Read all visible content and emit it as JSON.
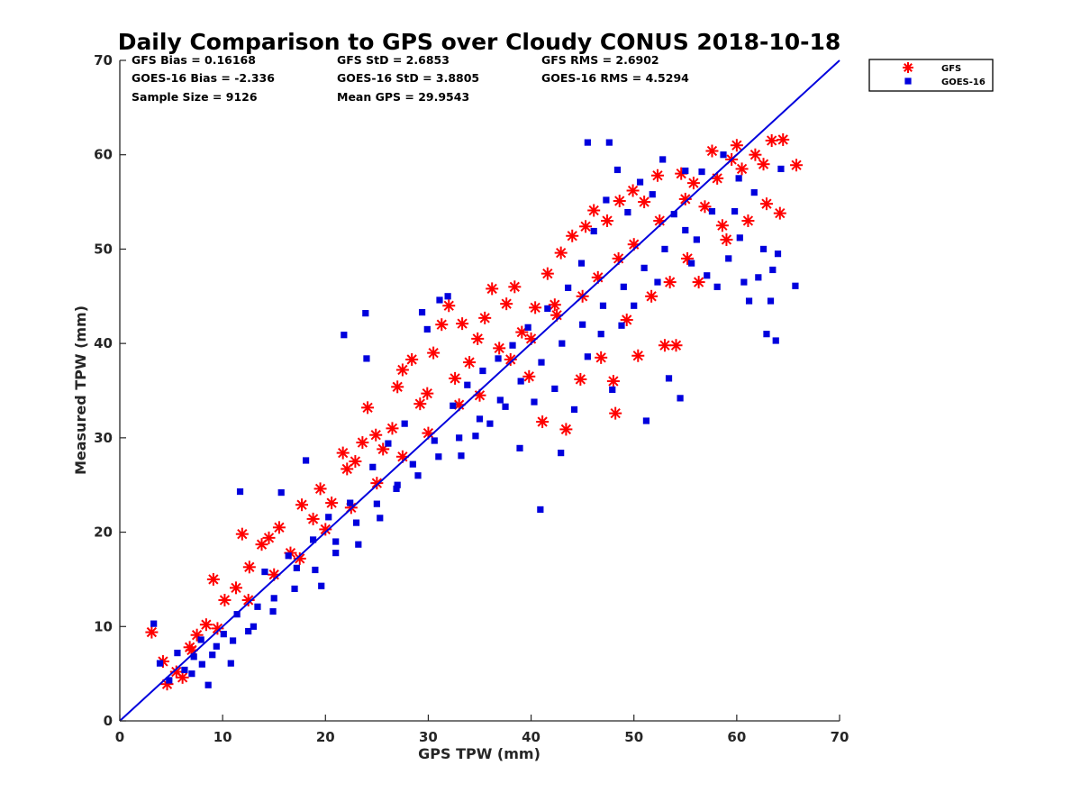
{
  "chart_data": {
    "type": "scatter",
    "title": "Daily Comparison to GPS over Cloudy CONUS 2018-10-18",
    "xlabel": "GPS TPW (mm)",
    "ylabel": "Measured TPW (mm)",
    "xlim": [
      0,
      70
    ],
    "ylim": [
      0,
      70
    ],
    "xticks": [
      0,
      10,
      20,
      30,
      40,
      50,
      60,
      70
    ],
    "yticks": [
      0,
      10,
      20,
      30,
      40,
      50,
      60,
      70
    ],
    "grid": false,
    "legend_position": "outside top-right",
    "reference_line": {
      "x": [
        0,
        70
      ],
      "y": [
        0,
        70
      ],
      "color": "#0000dd"
    },
    "stats": [
      [
        "GFS Bias = 0.16168",
        "GFS StD = 2.6853",
        "GFS RMS = 2.6902"
      ],
      [
        "GOES-16 Bias = -2.336",
        "GOES-16 StD = 3.8805",
        "GOES-16 RMS = 4.5294"
      ],
      [
        "Sample Size = 9126",
        "Mean GPS = 29.9543",
        ""
      ]
    ],
    "series": [
      {
        "name": "GFS",
        "color": "#ff0000",
        "marker": "asterisk",
        "points": [
          [
            3.1,
            9.4
          ],
          [
            4.2,
            6.3
          ],
          [
            4.6,
            3.9
          ],
          [
            5.5,
            5.2
          ],
          [
            6.1,
            4.6
          ],
          [
            6.8,
            7.8
          ],
          [
            7.5,
            9.1
          ],
          [
            8.4,
            10.2
          ],
          [
            9.1,
            15.0
          ],
          [
            10.2,
            12.8
          ],
          [
            11.3,
            14.1
          ],
          [
            11.9,
            19.8
          ],
          [
            12.6,
            16.3
          ],
          [
            13.8,
            18.7
          ],
          [
            14.5,
            19.4
          ],
          [
            15.5,
            20.5
          ],
          [
            16.6,
            17.8
          ],
          [
            17.7,
            22.9
          ],
          [
            18.8,
            21.4
          ],
          [
            19.5,
            24.6
          ],
          [
            20.6,
            23.1
          ],
          [
            21.7,
            28.4
          ],
          [
            22.1,
            26.7
          ],
          [
            22.9,
            27.5
          ],
          [
            23.6,
            29.5
          ],
          [
            24.1,
            33.2
          ],
          [
            24.9,
            30.3
          ],
          [
            25.6,
            28.8
          ],
          [
            26.5,
            31.0
          ],
          [
            27.0,
            35.4
          ],
          [
            27.5,
            37.2
          ],
          [
            28.4,
            38.3
          ],
          [
            29.2,
            33.6
          ],
          [
            29.9,
            34.7
          ],
          [
            30.5,
            39.0
          ],
          [
            31.3,
            42.0
          ],
          [
            32.0,
            44.0
          ],
          [
            32.6,
            36.3
          ],
          [
            33.3,
            42.1
          ],
          [
            34.0,
            38.0
          ],
          [
            34.8,
            40.5
          ],
          [
            35.5,
            42.7
          ],
          [
            36.2,
            45.8
          ],
          [
            36.9,
            39.5
          ],
          [
            37.6,
            44.2
          ],
          [
            38.4,
            46.0
          ],
          [
            39.1,
            41.2
          ],
          [
            39.8,
            36.5
          ],
          [
            40.4,
            43.8
          ],
          [
            41.1,
            31.7
          ],
          [
            41.6,
            47.4
          ],
          [
            42.3,
            44.1
          ],
          [
            42.9,
            49.6
          ],
          [
            43.4,
            30.9
          ],
          [
            44.0,
            51.4
          ],
          [
            44.8,
            36.2
          ],
          [
            45.3,
            52.4
          ],
          [
            46.1,
            54.1
          ],
          [
            46.8,
            38.5
          ],
          [
            47.4,
            53.0
          ],
          [
            48.0,
            36.0
          ],
          [
            48.2,
            32.6
          ],
          [
            48.6,
            55.1
          ],
          [
            49.3,
            42.5
          ],
          [
            49.9,
            56.2
          ],
          [
            50.4,
            38.7
          ],
          [
            51.0,
            55.0
          ],
          [
            51.7,
            45.0
          ],
          [
            52.3,
            57.8
          ],
          [
            53.0,
            39.8
          ],
          [
            53.5,
            46.5
          ],
          [
            54.1,
            39.8
          ],
          [
            54.6,
            58.0
          ],
          [
            55.2,
            49.0
          ],
          [
            55.8,
            57.0
          ],
          [
            56.3,
            46.5
          ],
          [
            56.9,
            54.5
          ],
          [
            57.6,
            60.4
          ],
          [
            58.1,
            57.5
          ],
          [
            58.6,
            52.5
          ],
          [
            59.0,
            51.0
          ],
          [
            59.5,
            59.5
          ],
          [
            60.0,
            61.0
          ],
          [
            60.5,
            58.5
          ],
          [
            61.1,
            53.0
          ],
          [
            61.8,
            60.0
          ],
          [
            62.6,
            59.0
          ],
          [
            62.9,
            54.8
          ],
          [
            63.4,
            61.5
          ],
          [
            64.2,
            53.8
          ],
          [
            64.5,
            61.6
          ],
          [
            65.8,
            58.9
          ],
          [
            45.0,
            45.0
          ],
          [
            40.0,
            40.5
          ],
          [
            35.0,
            34.5
          ],
          [
            30.0,
            30.5
          ],
          [
            25.0,
            25.2
          ],
          [
            20.0,
            20.3
          ],
          [
            15.0,
            15.5
          ],
          [
            50.0,
            50.5
          ],
          [
            55.0,
            55.3
          ],
          [
            38.0,
            38.3
          ],
          [
            33.0,
            33.5
          ],
          [
            27.5,
            28.0
          ],
          [
            22.5,
            22.6
          ],
          [
            17.5,
            17.2
          ],
          [
            12.5,
            12.8
          ],
          [
            7.0,
            7.5
          ],
          [
            9.5,
            9.8
          ],
          [
            46.5,
            47.0
          ],
          [
            42.5,
            43.0
          ],
          [
            52.5,
            53.0
          ],
          [
            48.5,
            49.0
          ]
        ]
      },
      {
        "name": "GOES-16",
        "color": "#0000dd",
        "marker": "square",
        "points": [
          [
            3.3,
            10.3
          ],
          [
            3.9,
            6.1
          ],
          [
            4.8,
            4.3
          ],
          [
            5.6,
            7.2
          ],
          [
            6.3,
            5.4
          ],
          [
            7.2,
            6.8
          ],
          [
            7.9,
            8.6
          ],
          [
            8.6,
            3.8
          ],
          [
            9.4,
            7.9
          ],
          [
            10.1,
            9.2
          ],
          [
            10.8,
            6.1
          ],
          [
            11.4,
            11.3
          ],
          [
            11.7,
            24.3
          ],
          [
            12.5,
            9.5
          ],
          [
            13.4,
            12.1
          ],
          [
            14.1,
            15.8
          ],
          [
            14.9,
            11.6
          ],
          [
            15.7,
            24.2
          ],
          [
            16.4,
            17.5
          ],
          [
            17.2,
            16.2
          ],
          [
            18.1,
            27.6
          ],
          [
            18.8,
            19.2
          ],
          [
            19.6,
            14.3
          ],
          [
            20.3,
            21.6
          ],
          [
            21.0,
            17.8
          ],
          [
            21.8,
            40.9
          ],
          [
            22.4,
            23.1
          ],
          [
            23.2,
            18.7
          ],
          [
            23.9,
            43.2
          ],
          [
            24.0,
            38.4
          ],
          [
            24.6,
            26.9
          ],
          [
            25.3,
            21.5
          ],
          [
            26.1,
            29.4
          ],
          [
            26.9,
            24.6
          ],
          [
            27.7,
            31.5
          ],
          [
            28.5,
            27.2
          ],
          [
            29.4,
            43.3
          ],
          [
            29.9,
            41.5
          ],
          [
            30.6,
            29.7
          ],
          [
            31.1,
            44.6
          ],
          [
            31.9,
            45.0
          ],
          [
            32.4,
            33.4
          ],
          [
            33.2,
            28.1
          ],
          [
            33.8,
            35.6
          ],
          [
            34.6,
            30.2
          ],
          [
            35.3,
            37.1
          ],
          [
            36.0,
            31.5
          ],
          [
            36.8,
            38.4
          ],
          [
            37.5,
            33.3
          ],
          [
            38.2,
            39.8
          ],
          [
            38.9,
            28.9
          ],
          [
            39.7,
            41.7
          ],
          [
            40.3,
            33.8
          ],
          [
            40.9,
            22.4
          ],
          [
            41.6,
            43.7
          ],
          [
            42.3,
            35.2
          ],
          [
            42.9,
            28.4
          ],
          [
            43.6,
            45.9
          ],
          [
            44.2,
            33.0
          ],
          [
            44.9,
            48.5
          ],
          [
            45.5,
            38.6
          ],
          [
            46.1,
            51.9
          ],
          [
            46.8,
            41.0
          ],
          [
            47.3,
            55.2
          ],
          [
            47.9,
            35.1
          ],
          [
            48.4,
            58.4
          ],
          [
            48.8,
            41.9
          ],
          [
            49.4,
            53.9
          ],
          [
            50.0,
            44.0
          ],
          [
            50.6,
            57.1
          ],
          [
            51.2,
            31.8
          ],
          [
            51.8,
            55.8
          ],
          [
            52.3,
            46.5
          ],
          [
            52.8,
            59.5
          ],
          [
            53.4,
            36.3
          ],
          [
            53.9,
            53.7
          ],
          [
            54.5,
            34.2
          ],
          [
            55.0,
            58.3
          ],
          [
            55.6,
            48.5
          ],
          [
            56.1,
            51.0
          ],
          [
            56.6,
            58.2
          ],
          [
            57.1,
            47.2
          ],
          [
            57.6,
            54.0
          ],
          [
            58.1,
            46.0
          ],
          [
            58.7,
            60.0
          ],
          [
            59.2,
            49.0
          ],
          [
            59.8,
            54.0
          ],
          [
            60.2,
            57.5
          ],
          [
            60.7,
            46.5
          ],
          [
            61.2,
            44.5
          ],
          [
            61.7,
            56.0
          ],
          [
            62.1,
            47.0
          ],
          [
            62.6,
            50.0
          ],
          [
            62.9,
            41.0
          ],
          [
            63.3,
            44.5
          ],
          [
            63.5,
            47.8
          ],
          [
            63.8,
            40.3
          ],
          [
            64.0,
            49.5
          ],
          [
            64.3,
            58.5
          ],
          [
            65.7,
            46.1
          ],
          [
            47.6,
            61.3
          ],
          [
            45.5,
            61.3
          ],
          [
            60.3,
            51.2
          ],
          [
            7.0,
            5.0
          ],
          [
            8.0,
            6.0
          ],
          [
            9.0,
            7.0
          ],
          [
            11.0,
            8.5
          ],
          [
            13.0,
            10.0
          ],
          [
            15.0,
            13.0
          ],
          [
            17.0,
            14.0
          ],
          [
            19.0,
            16.0
          ],
          [
            21.0,
            19.0
          ],
          [
            23.0,
            21.0
          ],
          [
            25.0,
            23.0
          ],
          [
            27.0,
            25.0
          ],
          [
            29.0,
            26.0
          ],
          [
            31.0,
            28.0
          ],
          [
            33.0,
            30.0
          ],
          [
            35.0,
            32.0
          ],
          [
            37.0,
            34.0
          ],
          [
            39.0,
            36.0
          ],
          [
            41.0,
            38.0
          ],
          [
            43.0,
            40.0
          ],
          [
            45.0,
            42.0
          ],
          [
            47.0,
            44.0
          ],
          [
            49.0,
            46.0
          ],
          [
            51.0,
            48.0
          ],
          [
            53.0,
            50.0
          ],
          [
            55.0,
            52.0
          ]
        ]
      }
    ]
  }
}
